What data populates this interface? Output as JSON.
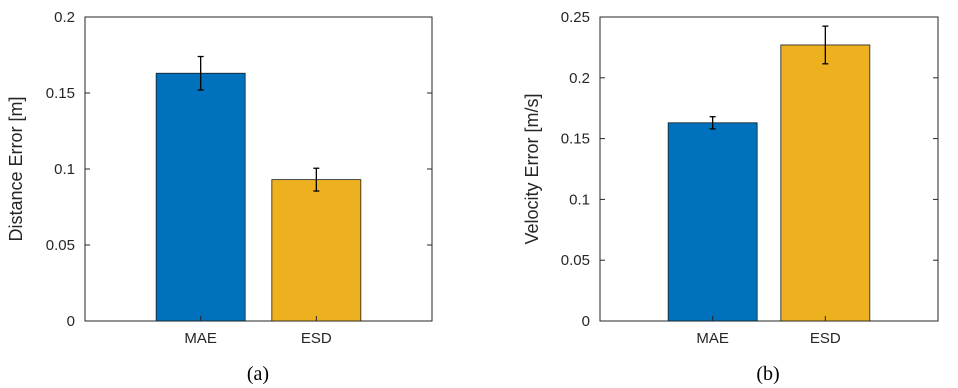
{
  "chart_data": [
    {
      "type": "bar",
      "categories": [
        "MAE",
        "ESD"
      ],
      "values": [
        0.163,
        0.093
      ],
      "error": [
        0.011,
        0.0075
      ],
      "colors": [
        "#0072BD",
        "#EDB120"
      ],
      "ylabel": "Distance Error [m]",
      "ylim": [
        0,
        0.2
      ],
      "yticks": [
        0,
        0.05,
        0.1,
        0.15,
        0.2
      ],
      "ytick_labels": [
        "0",
        "0.05",
        "0.1",
        "0.15",
        "0.2"
      ],
      "caption": "(a)",
      "grid": false
    },
    {
      "type": "bar",
      "categories": [
        "MAE",
        "ESD"
      ],
      "values": [
        0.163,
        0.227
      ],
      "error": [
        0.005,
        0.0155
      ],
      "colors": [
        "#0072BD",
        "#EDB120"
      ],
      "ylabel": "Velocity Error [m/s]",
      "ylim": [
        0,
        0.25
      ],
      "yticks": [
        0,
        0.05,
        0.1,
        0.15,
        0.2,
        0.25
      ],
      "ytick_labels": [
        "0",
        "0.05",
        "0.1",
        "0.15",
        "0.2",
        "0.25"
      ],
      "caption": "(b)",
      "grid": false
    }
  ]
}
